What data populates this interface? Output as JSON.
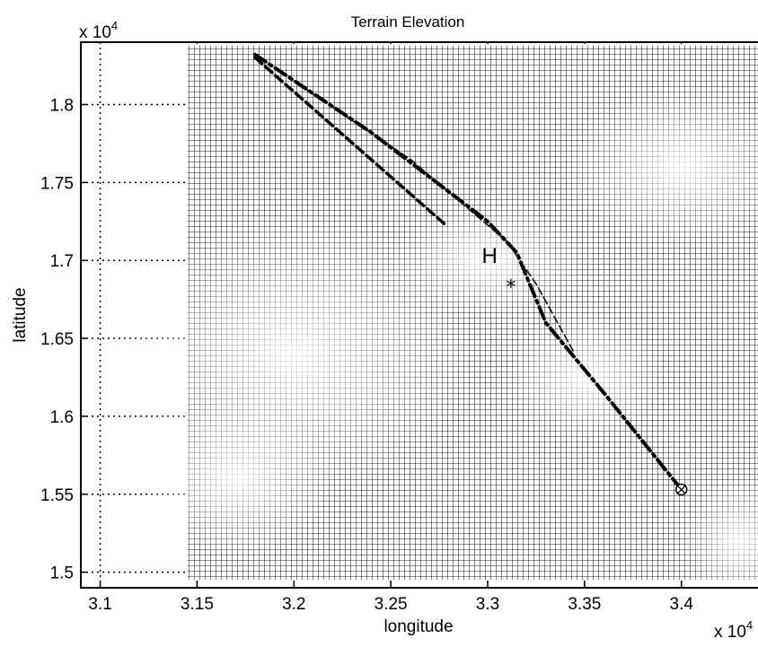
{
  "chart_data": {
    "type": "line",
    "title": "Terrain Elevation",
    "xlabel": "longitude",
    "ylabel": "latitude",
    "x_multiplier": "x 10",
    "y_multiplier": "x 10",
    "multiplier_exponent": "4",
    "xlim": [
      3.09,
      3.44
    ],
    "ylim": [
      1.49,
      1.84
    ],
    "xticks": [
      "3.1",
      "3.15",
      "3.2",
      "3.25",
      "3.3",
      "3.35",
      "3.4"
    ],
    "yticks": [
      "1.5",
      "1.55",
      "1.6",
      "1.65",
      "1.7",
      "1.75",
      "1.8"
    ],
    "xtick_values": [
      3.1,
      3.15,
      3.2,
      3.25,
      3.3,
      3.35,
      3.4
    ],
    "ytick_values": [
      1.5,
      1.55,
      1.6,
      1.65,
      1.7,
      1.75,
      1.8
    ],
    "grid": true,
    "terrain_mesh_extent": {
      "x": [
        3.145,
        3.44
      ],
      "y": [
        1.495,
        1.838
      ]
    },
    "series": [
      {
        "style": "dash-dot",
        "x": [
          3.18,
          3.24,
          3.3,
          3.315,
          3.33,
          3.36,
          3.4
        ],
        "y": [
          1.832,
          1.782,
          1.725,
          1.705,
          1.66,
          1.615,
          1.553
        ]
      },
      {
        "style": "dashed",
        "x": [
          3.18,
          3.279
        ],
        "y": [
          1.83,
          1.722
        ]
      },
      {
        "style": "thin-dashed",
        "x": [
          3.2,
          3.26,
          3.31,
          3.325,
          3.345
        ],
        "y": [
          1.815,
          1.765,
          1.712,
          1.685,
          1.64
        ]
      }
    ],
    "markers": [
      {
        "symbol": "*",
        "x": 3.312,
        "y": 1.683
      },
      {
        "symbol": "⊗",
        "x": 3.4,
        "y": 1.553
      }
    ],
    "annotations": [
      {
        "text": "H",
        "x": 3.301,
        "y": 1.703
      }
    ]
  }
}
